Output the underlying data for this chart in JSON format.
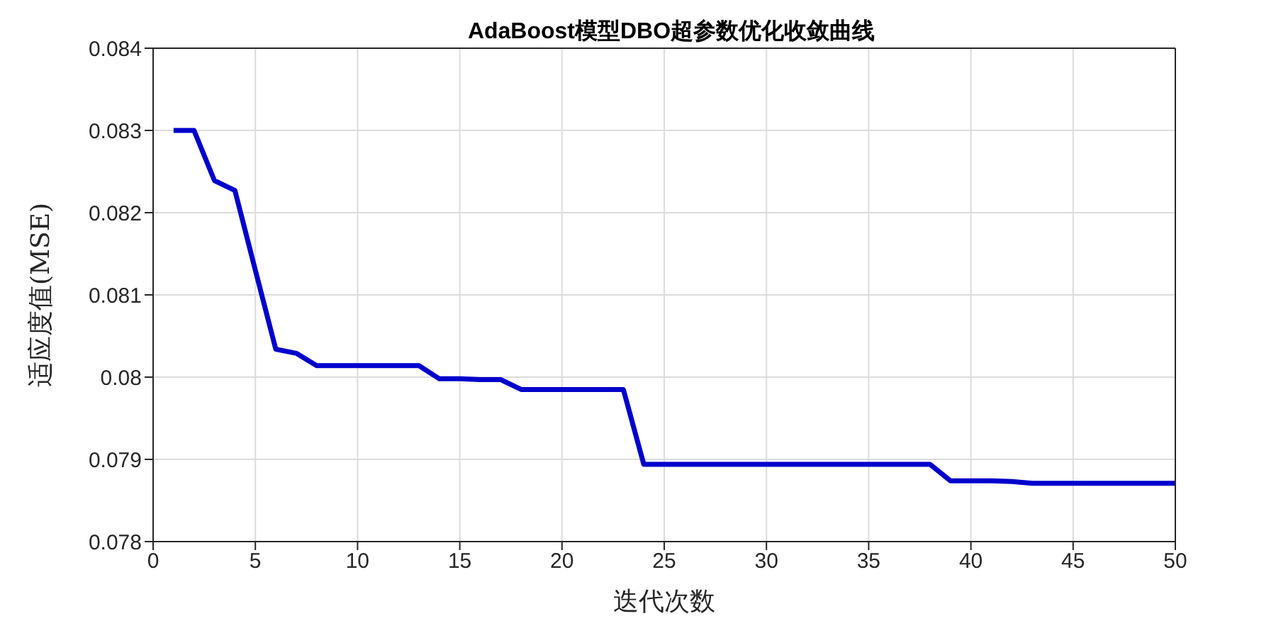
{
  "chart_data": {
    "type": "line",
    "title": "AdaBoost模型DBO超参数优化收敛曲线",
    "xlabel": "迭代次数",
    "ylabel": "适应度值(MSE)",
    "x": [
      1,
      2,
      3,
      4,
      5,
      6,
      7,
      8,
      9,
      10,
      11,
      12,
      13,
      14,
      15,
      16,
      17,
      18,
      19,
      20,
      21,
      22,
      23,
      24,
      25,
      26,
      27,
      28,
      29,
      30,
      31,
      32,
      33,
      34,
      35,
      36,
      37,
      38,
      39,
      40,
      41,
      42,
      43,
      44,
      45,
      46,
      47,
      48,
      49,
      50
    ],
    "series": [
      {
        "color": "#0000cc",
        "values": [
          0.083,
          0.083,
          0.08239,
          0.08227,
          0.0813,
          0.08034,
          0.08029,
          0.08014,
          0.08014,
          0.08014,
          0.08014,
          0.08014,
          0.08014,
          0.07998,
          0.07998,
          0.07997,
          0.07997,
          0.07985,
          0.07985,
          0.07985,
          0.07985,
          0.07985,
          0.07985,
          0.07894,
          0.07894,
          0.07894,
          0.07894,
          0.07894,
          0.07894,
          0.07894,
          0.07894,
          0.07894,
          0.07894,
          0.07894,
          0.07894,
          0.07894,
          0.07894,
          0.07894,
          0.07874,
          0.07874,
          0.07874,
          0.07873,
          0.07871,
          0.07871,
          0.07871,
          0.07871,
          0.07871,
          0.07871,
          0.07871,
          0.07871
        ]
      }
    ],
    "xlim": [
      0,
      50
    ],
    "xticks": [
      0,
      5,
      10,
      15,
      20,
      25,
      30,
      35,
      40,
      45,
      50
    ],
    "ylim": [
      0.078,
      0.084
    ],
    "yticks": [
      0.078,
      0.079,
      0.08,
      0.081,
      0.082,
      0.083,
      0.084
    ],
    "grid": true,
    "legend": false,
    "marker": "none",
    "line_style": "solid"
  }
}
